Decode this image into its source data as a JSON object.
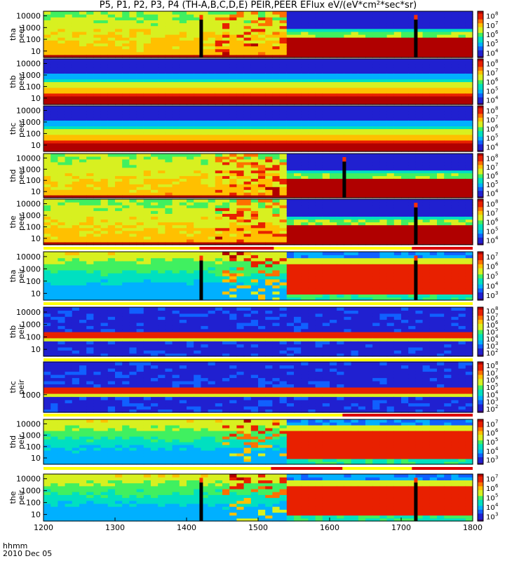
{
  "title": "P5, P1, P2, P3, P4 (TH-A,B,C,D,E) PEIR,PEER EFlux eV/(eV*cm²*sec*sr)",
  "footer": {
    "time_label": "hhmm",
    "date_label": "2010 Dec 05"
  },
  "chart_data": {
    "type": "heatmap",
    "title": "P5, P1, P2, P3, P4 (TH-A,B,C,D,E) PEIR,PEER EFlux eV/(eV*cm²*sec*sr)",
    "x_axis": {
      "ticks": [
        "1200",
        "1300",
        "1400",
        "1500",
        "1600",
        "1700",
        "1800"
      ],
      "range": [
        "1200",
        "1800"
      ]
    },
    "panels": [
      {
        "probe": "tha",
        "species": "peer",
        "y_ticks": [
          "10",
          "100",
          "1000",
          "10000"
        ],
        "colorbar_exponents": [
          4,
          5,
          6,
          7,
          8
        ],
        "profile": "electron_dense"
      },
      {
        "probe": "thb",
        "species": "peer",
        "y_ticks": [
          "10",
          "100",
          "1000",
          "10000"
        ],
        "colorbar_exponents": [
          4,
          5,
          6,
          7,
          8
        ],
        "profile": "electron_steady"
      },
      {
        "probe": "thc",
        "species": "peer",
        "y_ticks": [
          "10",
          "100",
          "1000",
          "10000"
        ],
        "colorbar_exponents": [
          4,
          5,
          6,
          7,
          8
        ],
        "profile": "electron_steady"
      },
      {
        "probe": "thd",
        "species": "peer",
        "y_ticks": [
          "10",
          "100",
          "1000",
          "10000"
        ],
        "colorbar_exponents": [
          4,
          5,
          6,
          7,
          8
        ],
        "profile": "electron_dense"
      },
      {
        "probe": "the",
        "species": "peer",
        "y_ticks": [
          "10",
          "100",
          "1000",
          "10000"
        ],
        "colorbar_exponents": [
          4,
          5,
          6,
          7,
          8
        ],
        "profile": "electron_dense"
      },
      {
        "probe": "tha",
        "species": "peir",
        "y_ticks": [
          "10",
          "100",
          "1000",
          "10000"
        ],
        "colorbar_exponents": [
          3,
          4,
          5,
          6,
          7
        ],
        "profile": "ion_dense"
      },
      {
        "probe": "thb",
        "species": "peir",
        "y_ticks": [
          "10",
          "100",
          "1000",
          "10000"
        ],
        "colorbar_exponents": [
          2,
          3,
          4,
          5,
          6,
          7,
          8
        ],
        "profile": "ion_band"
      },
      {
        "probe": "thc",
        "species": "peir",
        "y_ticks": [
          "1000"
        ],
        "colorbar_exponents": [
          2,
          3,
          4,
          5,
          6,
          7,
          8
        ],
        "profile": "ion_band"
      },
      {
        "probe": "thd",
        "species": "peir",
        "y_ticks": [
          "10",
          "100",
          "1000",
          "10000"
        ],
        "colorbar_exponents": [
          3,
          4,
          5,
          6,
          7
        ],
        "profile": "ion_dense"
      },
      {
        "probe": "the",
        "species": "peir",
        "y_ticks": [
          "10",
          "100",
          "1000",
          "10000"
        ],
        "colorbar_exponents": [
          3,
          4,
          5,
          6,
          7
        ],
        "profile": "ion_dense"
      }
    ],
    "transition_time": 1540,
    "data_gaps": [
      {
        "panels": [
          0,
          5,
          9
        ],
        "time": 1420
      },
      {
        "panels": [
          0,
          4,
          5,
          9
        ],
        "time": 1720
      },
      {
        "panels": [
          3
        ],
        "time": 1620
      }
    ],
    "mode_bars": [
      {
        "after_panel": 4,
        "segments": [
          {
            "from": 1200,
            "to": 1418,
            "color": "#ffff00"
          },
          {
            "from": 1418,
            "to": 1522,
            "color": "#dc0000"
          },
          {
            "from": 1522,
            "to": 1715,
            "color": "#ffff00"
          },
          {
            "from": 1715,
            "to": 1800,
            "color": "#dc0000"
          }
        ]
      },
      {
        "after_panel": 5,
        "segments": [
          {
            "from": 1200,
            "to": 1800,
            "color": "#ffff00"
          }
        ]
      },
      {
        "after_panel": 6,
        "segments": [
          {
            "from": 1200,
            "to": 1800,
            "color": "#ffff00"
          }
        ]
      },
      {
        "after_panel": 7,
        "segments": [
          {
            "from": 1200,
            "to": 1618,
            "color": "#ffff00"
          },
          {
            "from": 1618,
            "to": 1800,
            "color": "#dc0000"
          }
        ]
      },
      {
        "after_panel": 8,
        "segments": [
          {
            "from": 1200,
            "to": 1518,
            "color": "#ffff00"
          },
          {
            "from": 1518,
            "to": 1618,
            "color": "#dc0000"
          },
          {
            "from": 1618,
            "to": 1715,
            "color": "#ffff00"
          },
          {
            "from": 1715,
            "to": 1800,
            "color": "#dc0000"
          }
        ]
      }
    ],
    "colormap": [
      "#3c0070",
      "#2020d0",
      "#1060ff",
      "#00b0ff",
      "#00e0c0",
      "#40f060",
      "#d8f020",
      "#ffc000",
      "#ff7000",
      "#e82000",
      "#b00000"
    ]
  }
}
